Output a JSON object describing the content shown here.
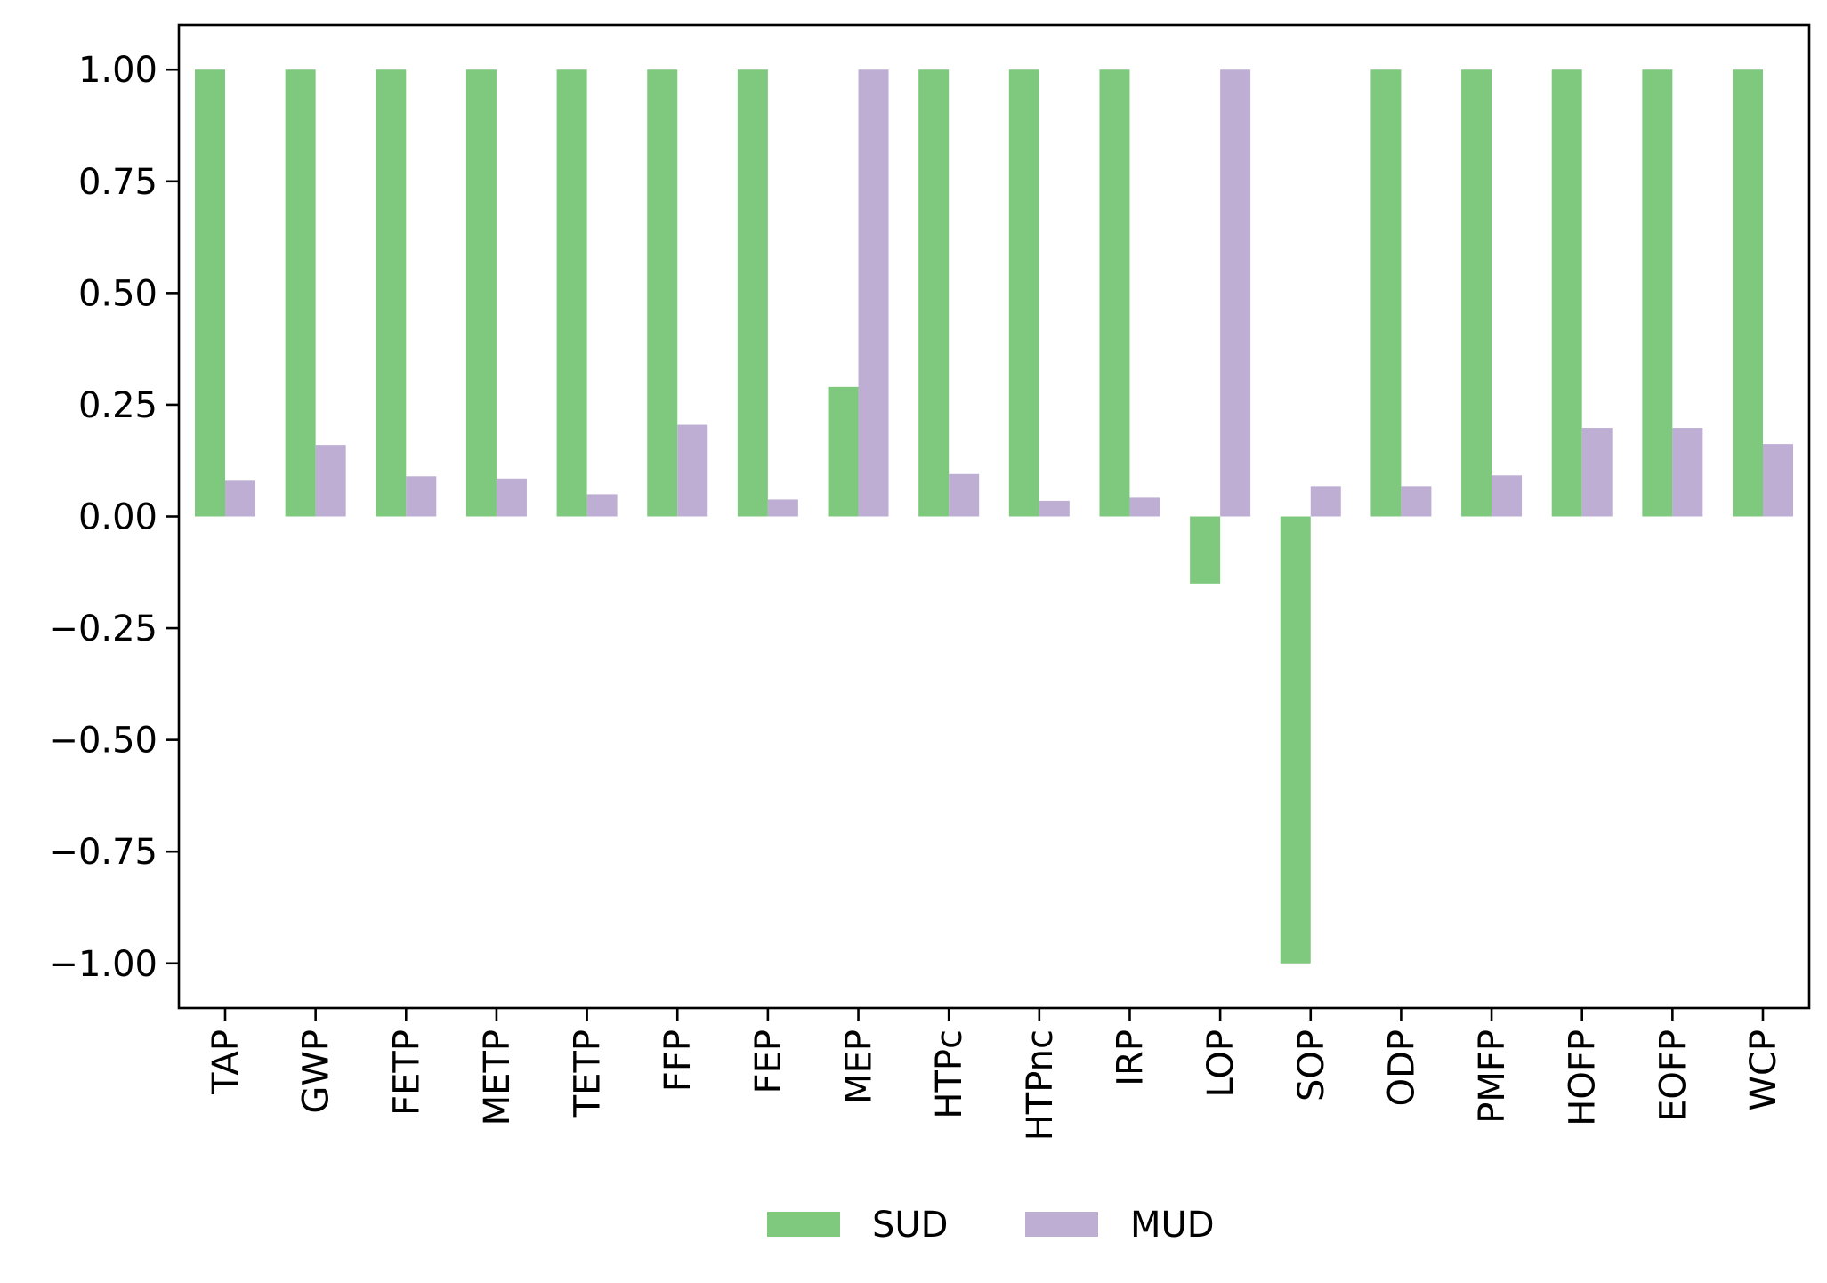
{
  "chart_data": {
    "type": "bar",
    "title": "",
    "xlabel": "",
    "ylabel": "",
    "categories": [
      "TAP",
      "GWP",
      "FETP",
      "METP",
      "TETP",
      "FFP",
      "FEP",
      "MEP",
      "HTPc",
      "HTPnc",
      "IRP",
      "LOP",
      "SOP",
      "ODP",
      "PMFP",
      "HOFP",
      "EOFP",
      "WCP"
    ],
    "series": [
      {
        "name": "SUD",
        "color": "#7fc97f",
        "values": [
          1.0,
          1.0,
          1.0,
          1.0,
          1.0,
          1.0,
          1.0,
          0.29,
          1.0,
          1.0,
          1.0,
          -0.15,
          -1.0,
          1.0,
          1.0,
          1.0,
          1.0,
          1.0
        ]
      },
      {
        "name": "MUD",
        "color": "#beaed4",
        "values": [
          0.08,
          0.16,
          0.09,
          0.085,
          0.05,
          0.205,
          0.038,
          1.0,
          0.095,
          0.035,
          0.042,
          1.0,
          0.068,
          0.068,
          0.092,
          0.198,
          0.198,
          0.162
        ]
      }
    ],
    "ylim": [
      -1.1,
      1.1
    ],
    "yticks": [
      1.0,
      0.75,
      0.5,
      0.25,
      0.0,
      -0.25,
      -0.5,
      -0.75,
      -1.0
    ],
    "ytick_labels": [
      "1.00",
      "0.75",
      "0.50",
      "0.25",
      "0.00",
      "−0.25",
      "−0.50",
      "−0.75",
      "−1.00"
    ],
    "grid": false,
    "legend_position": "bottom-center"
  }
}
